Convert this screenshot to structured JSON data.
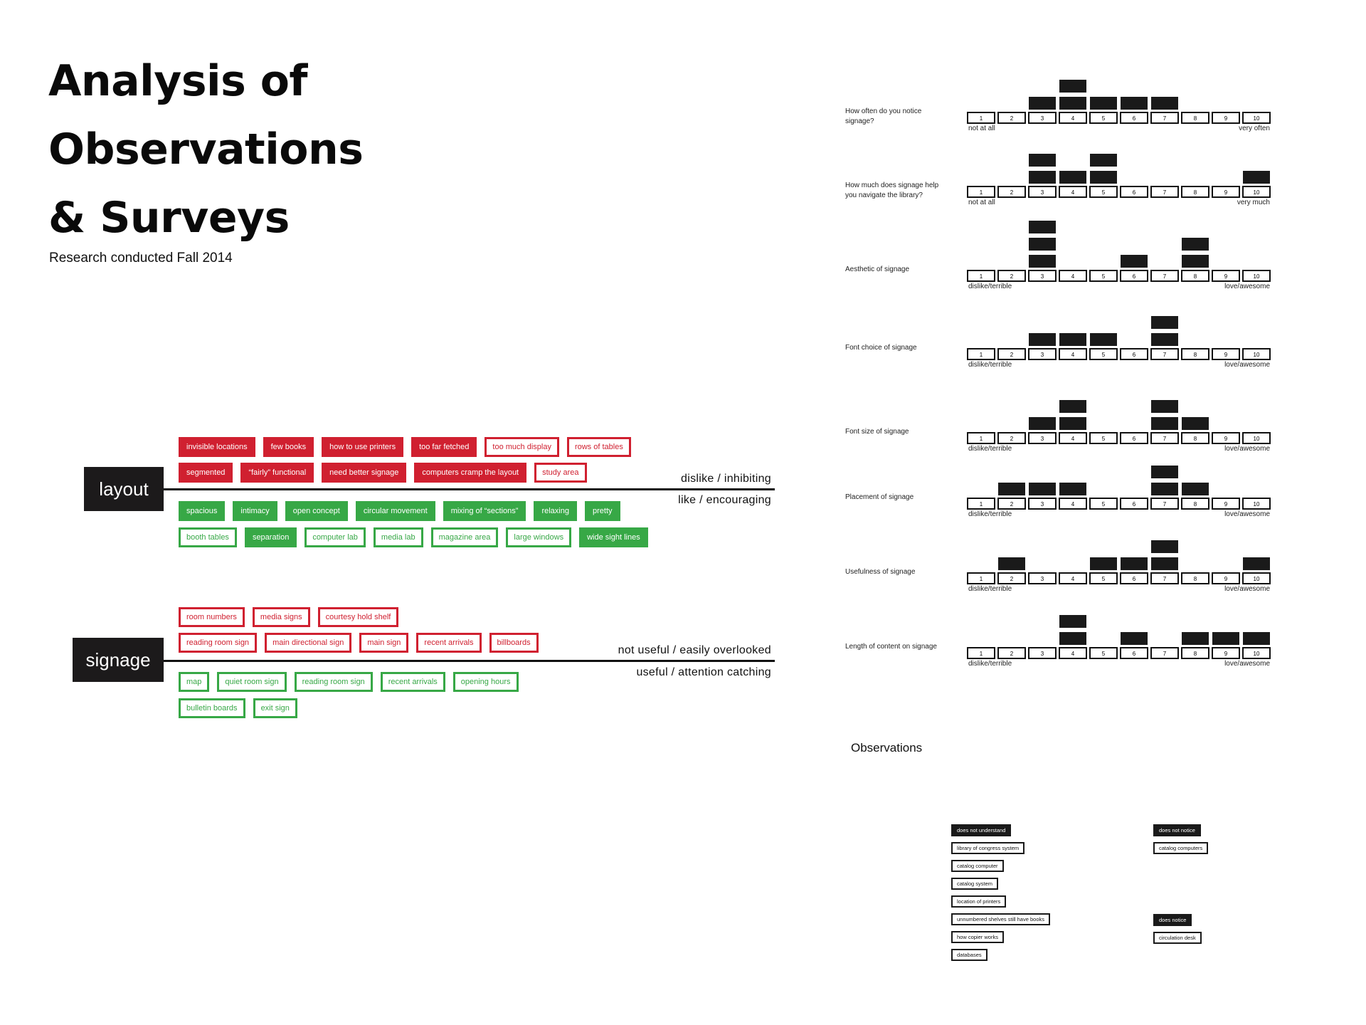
{
  "title": {
    "line1": "Analysis of",
    "line2": "Observations",
    "line3": "& Surveys"
  },
  "subtitle": "Research conducted Fall 2014",
  "layout": {
    "label": "layout",
    "top_axis_label": "dislike / inhibiting",
    "bottom_axis_label": "like / encouraging",
    "dislike_row1": [
      {
        "text": "invisible locations",
        "style": "filled"
      },
      {
        "text": "few books",
        "style": "filled"
      },
      {
        "text": "how to use printers",
        "style": "filled"
      },
      {
        "text": "too far fetched",
        "style": "filled"
      },
      {
        "text": "too much display",
        "style": "outline"
      },
      {
        "text": "rows of tables",
        "style": "outline"
      }
    ],
    "dislike_row2": [
      {
        "text": "segmented",
        "style": "filled"
      },
      {
        "text": "“fairly” functional",
        "style": "filled"
      },
      {
        "text": "need better signage",
        "style": "filled"
      },
      {
        "text": "computers cramp the layout",
        "style": "filled"
      },
      {
        "text": "study area",
        "style": "outline"
      }
    ],
    "like_row1": [
      {
        "text": "spacious",
        "style": "filled"
      },
      {
        "text": "intimacy",
        "style": "filled"
      },
      {
        "text": "open concept",
        "style": "filled"
      },
      {
        "text": "circular movement",
        "style": "filled"
      },
      {
        "text": "mixing of “sections”",
        "style": "filled"
      },
      {
        "text": "relaxing",
        "style": "filled"
      },
      {
        "text": "pretty",
        "style": "filled"
      }
    ],
    "like_row2": [
      {
        "text": "booth tables",
        "style": "outline"
      },
      {
        "text": "separation",
        "style": "filled"
      },
      {
        "text": "computer lab",
        "style": "outline"
      },
      {
        "text": "media lab",
        "style": "outline"
      },
      {
        "text": "magazine area",
        "style": "outline"
      },
      {
        "text": "large windows",
        "style": "outline"
      },
      {
        "text": "wide sight lines",
        "style": "filled"
      }
    ]
  },
  "signage": {
    "label": "signage",
    "top_axis_label": "not useful / easily overlooked",
    "bottom_axis_label": "useful / attention catching",
    "dislike_row1": [
      {
        "text": "room numbers",
        "style": "outline"
      },
      {
        "text": "media signs",
        "style": "outline"
      },
      {
        "text": "courtesy hold shelf",
        "style": "outline"
      }
    ],
    "dislike_row2": [
      {
        "text": "reading room sign",
        "style": "outline"
      },
      {
        "text": "main directional sign",
        "style": "outline"
      },
      {
        "text": "main sign",
        "style": "outline"
      },
      {
        "text": "recent arrivals",
        "style": "outline"
      },
      {
        "text": "billboards",
        "style": "outline"
      }
    ],
    "like_row1": [
      {
        "text": "map",
        "style": "outline"
      },
      {
        "text": "quiet room sign",
        "style": "outline"
      },
      {
        "text": "reading room sign",
        "style": "outline"
      },
      {
        "text": "recent arrivals",
        "style": "outline"
      },
      {
        "text": "opening hours",
        "style": "outline"
      }
    ],
    "like_row2": [
      {
        "text": "bulletin boards",
        "style": "outline"
      },
      {
        "text": "exit sign",
        "style": "outline"
      }
    ]
  },
  "colors": {
    "negative": "#d02030",
    "positive": "#37a846",
    "ink": "#1a1a1a"
  },
  "chart_data": {
    "type": "bar",
    "scale": [
      "1",
      "2",
      "3",
      "4",
      "5",
      "6",
      "7",
      "8",
      "9",
      "10"
    ],
    "questions": [
      {
        "label": "How often do you notice signage?",
        "low": "not at all",
        "high": "very often",
        "values": [
          0,
          0,
          1,
          2,
          1,
          1,
          1,
          0,
          0,
          0
        ]
      },
      {
        "label": "How much does signage help you navigate the library?",
        "low": "not at all",
        "high": "very much",
        "values": [
          0,
          0,
          2,
          1,
          2,
          0,
          0,
          0,
          0,
          1
        ]
      },
      {
        "label": "Aesthetic of signage",
        "low": "dislike/terrible",
        "high": "love/awesome",
        "values": [
          0,
          0,
          3,
          0,
          0,
          1,
          0,
          2,
          0,
          0
        ]
      },
      {
        "label": "Font choice of signage",
        "low": "dislike/terrible",
        "high": "love/awesome",
        "values": [
          0,
          0,
          1,
          1,
          1,
          0,
          2,
          0,
          0,
          0
        ]
      },
      {
        "label": "Font size of signage",
        "low": "dislike/terrible",
        "high": "love/awesome",
        "values": [
          0,
          0,
          1,
          2,
          0,
          0,
          2,
          1,
          0,
          0
        ]
      },
      {
        "label": "Placement of signage",
        "low": "dislike/terrible",
        "high": "love/awesome",
        "values": [
          0,
          1,
          1,
          1,
          0,
          0,
          2,
          1,
          0,
          0
        ]
      },
      {
        "label": "Usefulness of signage",
        "low": "dislike/terrible",
        "high": "love/awesome",
        "values": [
          0,
          1,
          0,
          0,
          1,
          1,
          2,
          0,
          0,
          1
        ]
      },
      {
        "label": "Length of content on signage",
        "low": "dislike/terrible",
        "high": "love/awesome",
        "values": [
          0,
          0,
          0,
          2,
          0,
          1,
          0,
          1,
          1,
          1
        ]
      }
    ]
  },
  "observations": {
    "title": "Observations",
    "col1": [
      {
        "text": "does not understand",
        "style": "filled"
      },
      {
        "text": "library of congress system",
        "style": "outline"
      },
      {
        "text": "catalog computer",
        "style": "outline"
      },
      {
        "text": "catalog system",
        "style": "outline"
      },
      {
        "text": "location of printers",
        "style": "outline"
      },
      {
        "text": "unnumbered shelves still have books",
        "style": "outline"
      },
      {
        "text": "how copier works",
        "style": "outline"
      },
      {
        "text": "databases",
        "style": "outline"
      }
    ],
    "col2": [
      {
        "text": "does not notice",
        "style": "filled"
      },
      {
        "text": "catalog computers",
        "style": "outline"
      }
    ],
    "col3": [
      {
        "text": "does notice",
        "style": "filled"
      },
      {
        "text": "circulation desk",
        "style": "outline"
      }
    ]
  }
}
